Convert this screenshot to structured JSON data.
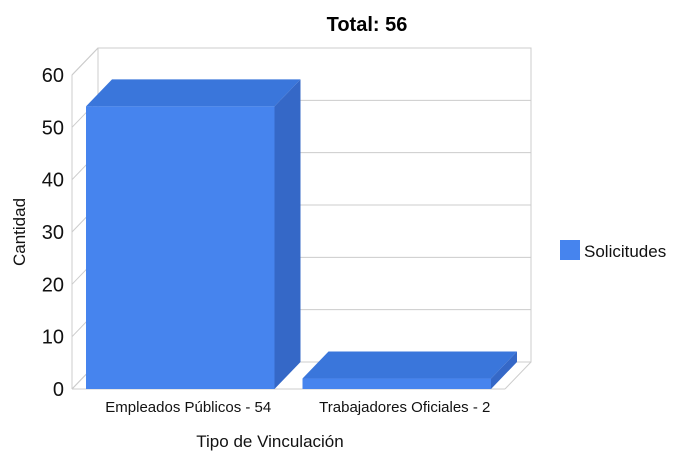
{
  "chart_data": {
    "type": "bar",
    "title": "Total: 56",
    "categories": [
      "Empleados Públicos - 54",
      "Trabajadores Oficiales - 2"
    ],
    "series": [
      {
        "name": "Solicitudes",
        "values": [
          54,
          2
        ],
        "color": "#4684ee"
      }
    ],
    "xlabel": "Tipo de Vinculación",
    "ylabel": "Cantidad",
    "ylim": [
      0,
      60
    ],
    "yticks": [
      0,
      10,
      20,
      30,
      40,
      50,
      60
    ],
    "grid": true,
    "three_d": true,
    "legend_position": "right"
  }
}
